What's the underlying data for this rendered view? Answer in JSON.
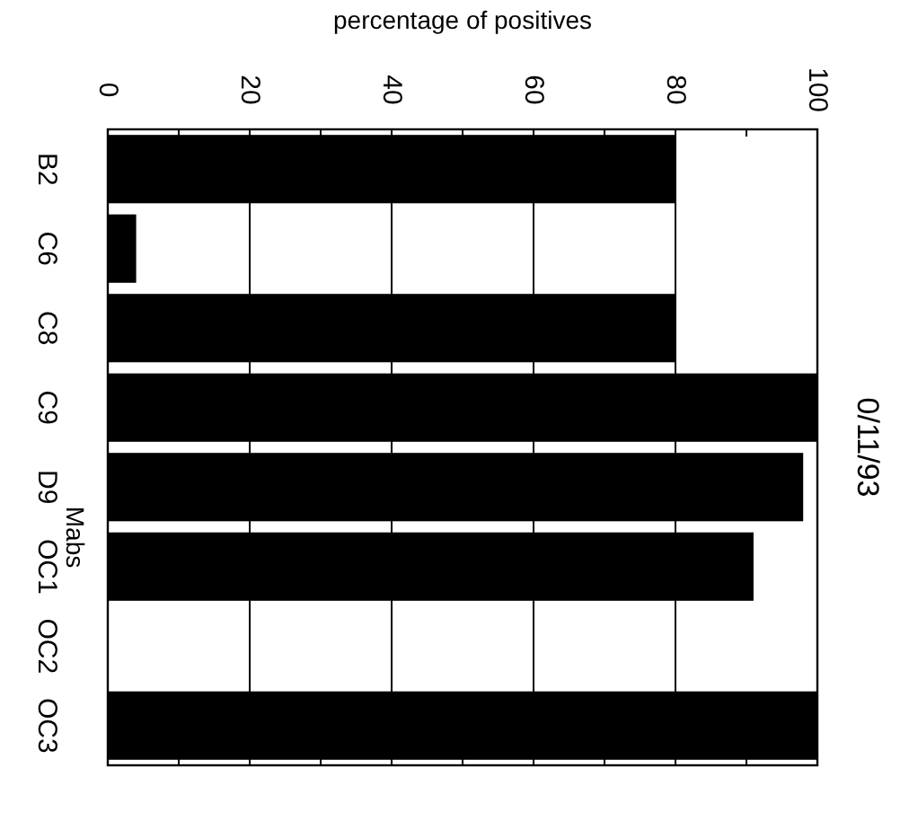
{
  "chart_data": {
    "type": "bar",
    "orientation": "horizontal",
    "title": "0/11/93",
    "xlabel": "percentage of positives",
    "ylabel": "Mabs",
    "categories": [
      "B2",
      "C6",
      "C8",
      "C9",
      "D9",
      "OC1",
      "OC2",
      "OC3"
    ],
    "values": [
      80,
      4,
      80,
      100,
      98,
      91,
      0,
      100
    ],
    "color": "#000000",
    "xlim": [
      0,
      100
    ],
    "xticks": [
      0,
      {
        "value": 10,
        "label": null
      },
      20,
      {
        "value": 30,
        "label": null
      },
      40,
      {
        "value": 50,
        "label": null
      },
      60,
      {
        "value": 70,
        "label": null
      },
      80,
      {
        "value": 90,
        "label": null
      },
      100
    ],
    "grid": "x"
  }
}
